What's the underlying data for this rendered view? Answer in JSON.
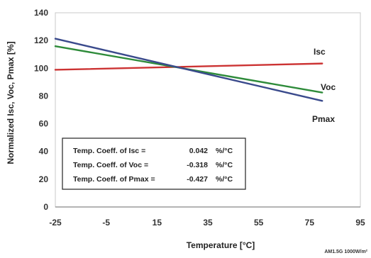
{
  "chart_data": {
    "type": "line",
    "xlabel": "Temperature [°C]",
    "ylabel": "Normalized Isc, Voc, Pmax [%]",
    "xlim": [
      -25,
      95
    ],
    "ylim": [
      0,
      140
    ],
    "x_ticks": [
      "-25",
      "-5",
      "15",
      "35",
      "55",
      "75",
      "95"
    ],
    "y_ticks": [
      "0",
      "20",
      "40",
      "60",
      "80",
      "100",
      "120",
      "140"
    ],
    "grid": false,
    "series": [
      {
        "name": "Isc",
        "color": "#cc3333",
        "x": [
          -25,
          80
        ],
        "y": [
          98.9,
          103.4
        ]
      },
      {
        "name": "Voc",
        "color": "#2e8b3a",
        "x": [
          -25,
          80
        ],
        "y": [
          115.9,
          82.5
        ]
      },
      {
        "name": "Pmax",
        "color": "#3a4a8c",
        "x": [
          -25,
          80
        ],
        "y": [
          121.3,
          76.5
        ]
      }
    ],
    "annotation_box": [
      {
        "label": "Temp. Coeff. of Isc =",
        "value": "0.042",
        "unit": "%/°C"
      },
      {
        "label": "Temp. Coeff. of Voc =",
        "value": "-0.318",
        "unit": "%/°C"
      },
      {
        "label": "Temp. Coeff. of Pmax =",
        "value": "-0.427",
        "unit": "%/°C"
      }
    ],
    "footnote": "AM1.5G 1000W/m²"
  }
}
